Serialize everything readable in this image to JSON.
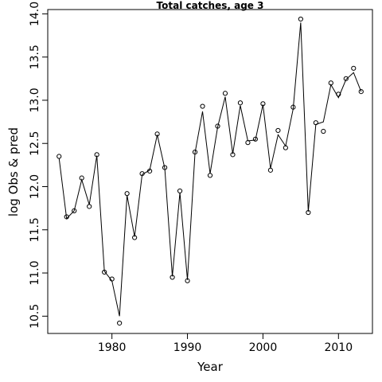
{
  "chart_data": {
    "type": "line",
    "title": "Total catches, age 3",
    "xlabel": "Year",
    "ylabel": "log Obs & pred",
    "xlim": [
      1971.5,
      2014.5
    ],
    "ylim": [
      10.3,
      14.05
    ],
    "x_ticks": [
      1980,
      1990,
      2000,
      2010
    ],
    "y_ticks": [
      10.5,
      11.0,
      11.5,
      12.0,
      12.5,
      13.0,
      13.5,
      14.0
    ],
    "x_tick_labels": [
      "1980",
      "1990",
      "2000",
      "2010"
    ],
    "y_tick_labels": [
      "10.5",
      "11.0",
      "11.5",
      "12.0",
      "12.5",
      "13.0",
      "13.5",
      "14.0"
    ],
    "grid": false,
    "series": [
      {
        "name": "",
        "style": "points",
        "x": [
          1973,
          1974,
          1975,
          1976,
          1977,
          1978,
          1979,
          1980,
          1981,
          1982,
          1983,
          1984,
          1985,
          1986,
          1987,
          1988,
          1989,
          1990,
          1991,
          1992,
          1993,
          1994,
          1995,
          1996,
          1997,
          1998,
          1999,
          2000,
          2001,
          2002,
          2003,
          2004,
          2005,
          2006,
          2007,
          2008,
          2009,
          2010,
          2011,
          2012,
          2013
        ],
        "values": [
          12.35,
          11.65,
          11.72,
          12.1,
          11.77,
          12.37,
          11.01,
          10.93,
          10.42,
          11.92,
          11.41,
          12.15,
          12.18,
          12.61,
          12.22,
          10.95,
          11.95,
          10.91,
          12.4,
          12.93,
          12.13,
          12.7,
          13.08,
          12.37,
          12.97,
          12.51,
          12.55,
          12.96,
          12.19,
          12.65,
          12.45,
          12.92,
          13.94,
          11.7,
          12.74,
          12.64,
          13.2,
          13.07,
          13.25,
          13.37,
          13.1
        ]
      },
      {
        "name": "",
        "style": "line",
        "x": [
          1973,
          1974,
          1975,
          1976,
          1977,
          1978,
          1979,
          1980,
          1981,
          1982,
          1983,
          1984,
          1985,
          1986,
          1987,
          1988,
          1989,
          1990,
          1991,
          1992,
          1993,
          1994,
          1995,
          1996,
          1997,
          1998,
          1999,
          2000,
          2001,
          2002,
          2003,
          2004,
          2005,
          2006,
          2007,
          2008,
          2009,
          2010,
          2011,
          2012,
          2013
        ],
        "values": [
          12.33,
          11.63,
          11.72,
          12.08,
          11.79,
          12.36,
          11.02,
          10.91,
          10.5,
          11.9,
          11.42,
          12.14,
          12.19,
          12.6,
          12.21,
          10.96,
          11.93,
          10.92,
          12.39,
          12.87,
          12.15,
          12.69,
          13.04,
          12.38,
          12.94,
          12.53,
          12.54,
          12.95,
          12.21,
          12.6,
          12.47,
          12.9,
          13.9,
          11.71,
          12.72,
          12.75,
          13.18,
          13.03,
          13.24,
          13.32,
          13.1
        ]
      }
    ]
  }
}
